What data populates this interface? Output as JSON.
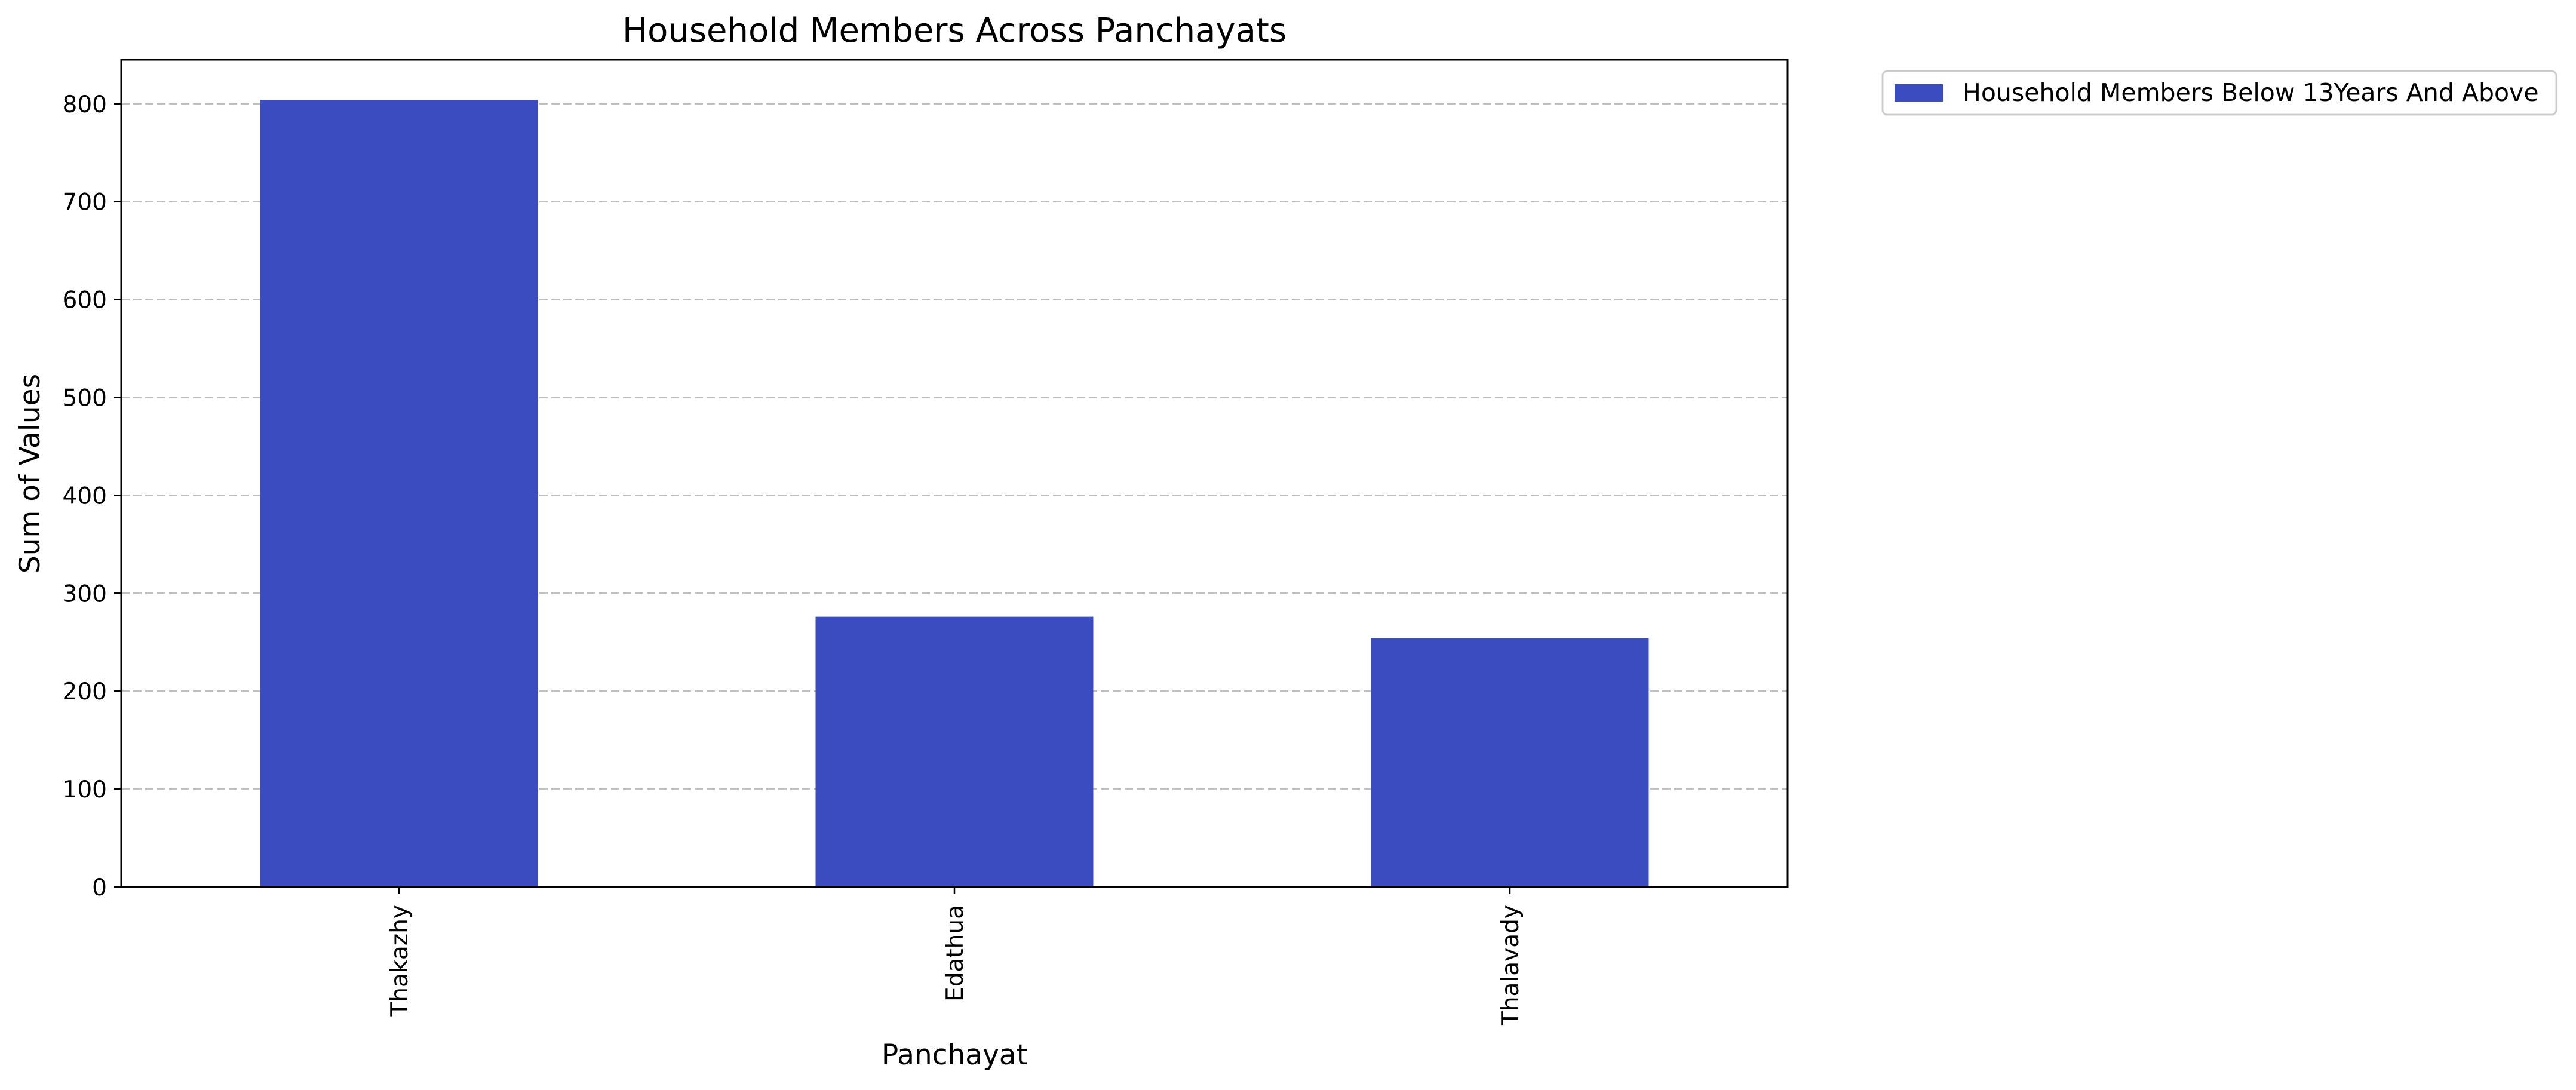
{
  "chart_data": {
    "type": "bar",
    "title": "Household Members Across Panchayats",
    "xlabel": "Panchayat",
    "ylabel": "Sum of Values",
    "categories": [
      "Thakazhy",
      "Edathua",
      "Thalavady"
    ],
    "series": [
      {
        "name": "Household Members Below 13Years And Above",
        "values": [
          804,
          276,
          254
        ],
        "color": "#3b4cc0"
      }
    ],
    "ylim": [
      0,
      845
    ],
    "yticks": [
      0,
      100,
      200,
      300,
      400,
      500,
      600,
      700,
      800
    ],
    "grid": "y-dashed",
    "legend_position": "outside-top-right"
  }
}
